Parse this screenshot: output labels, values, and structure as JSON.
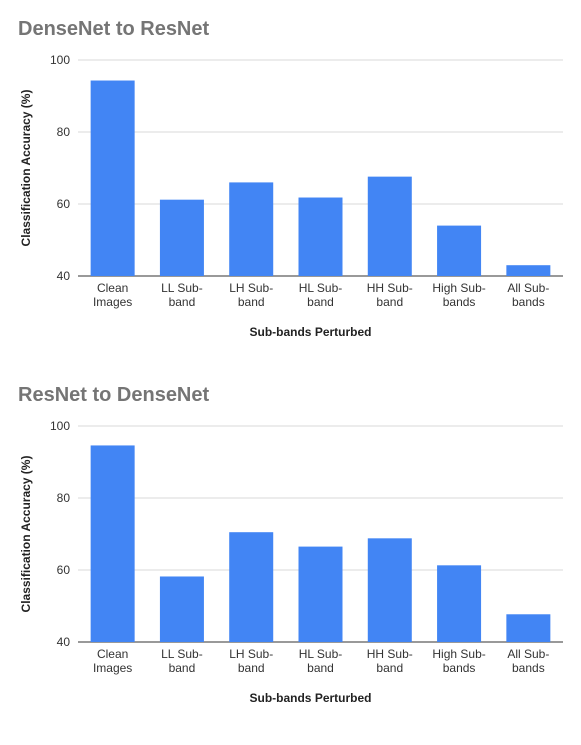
{
  "chart_data": [
    {
      "type": "bar",
      "title": "DenseNet to ResNet",
      "xlabel": "Sub-bands Perturbed",
      "ylabel": "Classification Accuracy (%)",
      "ylim": [
        40,
        100
      ],
      "yticks": [
        "100",
        "80",
        "60",
        "40"
      ],
      "grid": true,
      "bar_color": "#4285F4",
      "categories": [
        [
          "Clean",
          "Images"
        ],
        [
          "LL Sub-",
          "band"
        ],
        [
          "LH Sub-",
          "band"
        ],
        [
          "HL Sub-",
          "band"
        ],
        [
          "HH Sub-",
          "band"
        ],
        [
          "High Sub-",
          "bands"
        ],
        [
          "All Sub-",
          "bands"
        ]
      ],
      "values": [
        94.3,
        61.2,
        66.0,
        61.8,
        67.6,
        54.0,
        43.0
      ]
    },
    {
      "type": "bar",
      "title": "ResNet to DenseNet",
      "xlabel": "Sub-bands Perturbed",
      "ylabel": "Classification Accuracy (%)",
      "ylim": [
        40,
        100
      ],
      "yticks": [
        "100",
        "80",
        "60",
        "40"
      ],
      "grid": true,
      "bar_color": "#4285F4",
      "categories": [
        [
          "Clean",
          "Images"
        ],
        [
          "LL Sub-",
          "band"
        ],
        [
          "LH Sub-",
          "band"
        ],
        [
          "HL Sub-",
          "band"
        ],
        [
          "HH Sub-",
          "band"
        ],
        [
          "High Sub-",
          "bands"
        ],
        [
          "All Sub-",
          "bands"
        ]
      ],
      "values": [
        94.6,
        58.2,
        70.5,
        66.5,
        68.8,
        61.3,
        47.7
      ]
    }
  ]
}
